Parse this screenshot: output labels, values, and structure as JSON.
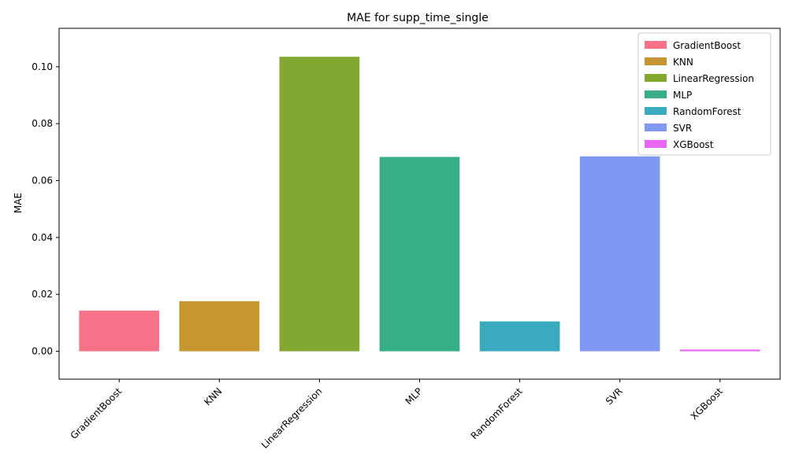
{
  "chart_data": {
    "type": "bar",
    "title": "MAE for supp_time_single",
    "xlabel": "",
    "ylabel": "MAE",
    "categories": [
      "GradientBoost",
      "KNN",
      "LinearRegression",
      "MLP",
      "RandomForest",
      "SVR",
      "XGBoost"
    ],
    "values": [
      0.0143,
      0.0176,
      0.1035,
      0.0683,
      0.0105,
      0.0685,
      0.0006
    ],
    "colors": [
      "#f77189",
      "#c7962f",
      "#83a831",
      "#36ae86",
      "#3aaabf",
      "#8197f4",
      "#e866f4"
    ],
    "ylim": [
      -0.0098,
      0.1135
    ],
    "yticks": [
      "0.00",
      "0.02",
      "0.04",
      "0.06",
      "0.08",
      "0.10"
    ],
    "ytick_values": [
      0,
      0.02,
      0.04,
      0.06,
      0.08,
      0.1
    ],
    "grid": false,
    "legend": {
      "placement": "top-right",
      "entries": [
        "GradientBoost",
        "KNN",
        "LinearRegression",
        "MLP",
        "RandomForest",
        "SVR",
        "XGBoost"
      ]
    }
  }
}
